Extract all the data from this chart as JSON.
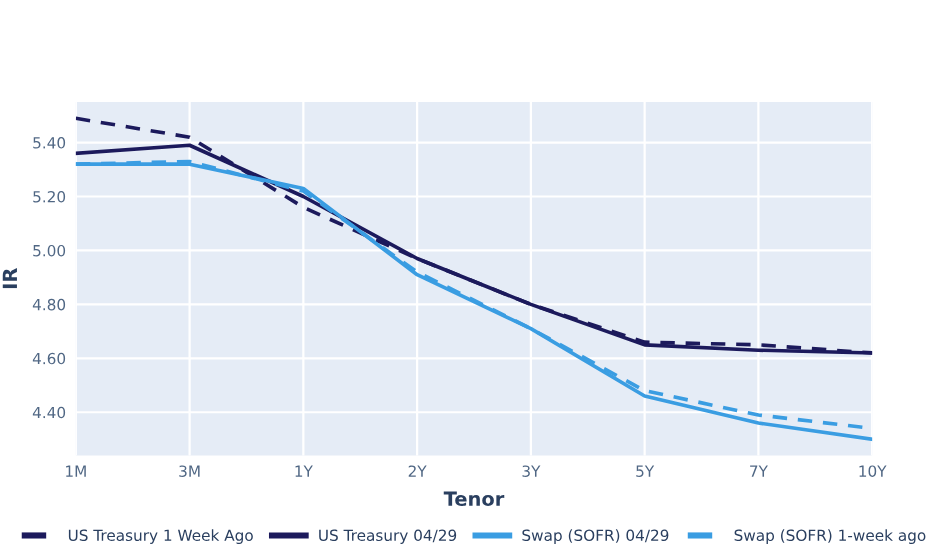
{
  "chart_data": {
    "type": "line",
    "xlabel": "Tenor",
    "ylabel": "IR",
    "categories": [
      "1M",
      "3M",
      "1Y",
      "2Y",
      "3Y",
      "5Y",
      "7Y",
      "10Y"
    ],
    "series": [
      {
        "name": "US Treasury 1 Week Ago",
        "color": "#1c1a5c",
        "line_style": "dashed",
        "values": [
          5.49,
          5.42,
          5.16,
          4.97,
          4.8,
          4.66,
          4.65,
          4.62
        ]
      },
      {
        "name": "US Treasury 04/29",
        "color": "#1c1a5c",
        "line_style": "solid",
        "values": [
          5.36,
          5.39,
          5.2,
          4.97,
          4.8,
          4.65,
          4.63,
          4.62
        ]
      },
      {
        "name": "Swap (SOFR) 04/29",
        "color": "#3a9de2",
        "line_style": "solid",
        "values": [
          5.32,
          5.32,
          5.23,
          4.91,
          4.71,
          4.46,
          4.36,
          4.3
        ]
      },
      {
        "name": "Swap (SOFR) 1-week ago",
        "color": "#3a9de2",
        "line_style": "dashed",
        "values": [
          5.32,
          5.33,
          5.22,
          4.92,
          4.71,
          4.48,
          4.39,
          4.34
        ]
      }
    ],
    "ylim": [
      4.24,
      5.55
    ],
    "yticks": [
      {
        "value": 4.4,
        "label": "4.40"
      },
      {
        "value": 4.6,
        "label": "4.60"
      },
      {
        "value": 4.8,
        "label": "4.80"
      },
      {
        "value": 5.0,
        "label": "5.00"
      },
      {
        "value": 5.2,
        "label": "5.20"
      },
      {
        "value": 5.4,
        "label": "5.40"
      }
    ],
    "grid": true,
    "legend": "bottom",
    "marker": "none"
  }
}
